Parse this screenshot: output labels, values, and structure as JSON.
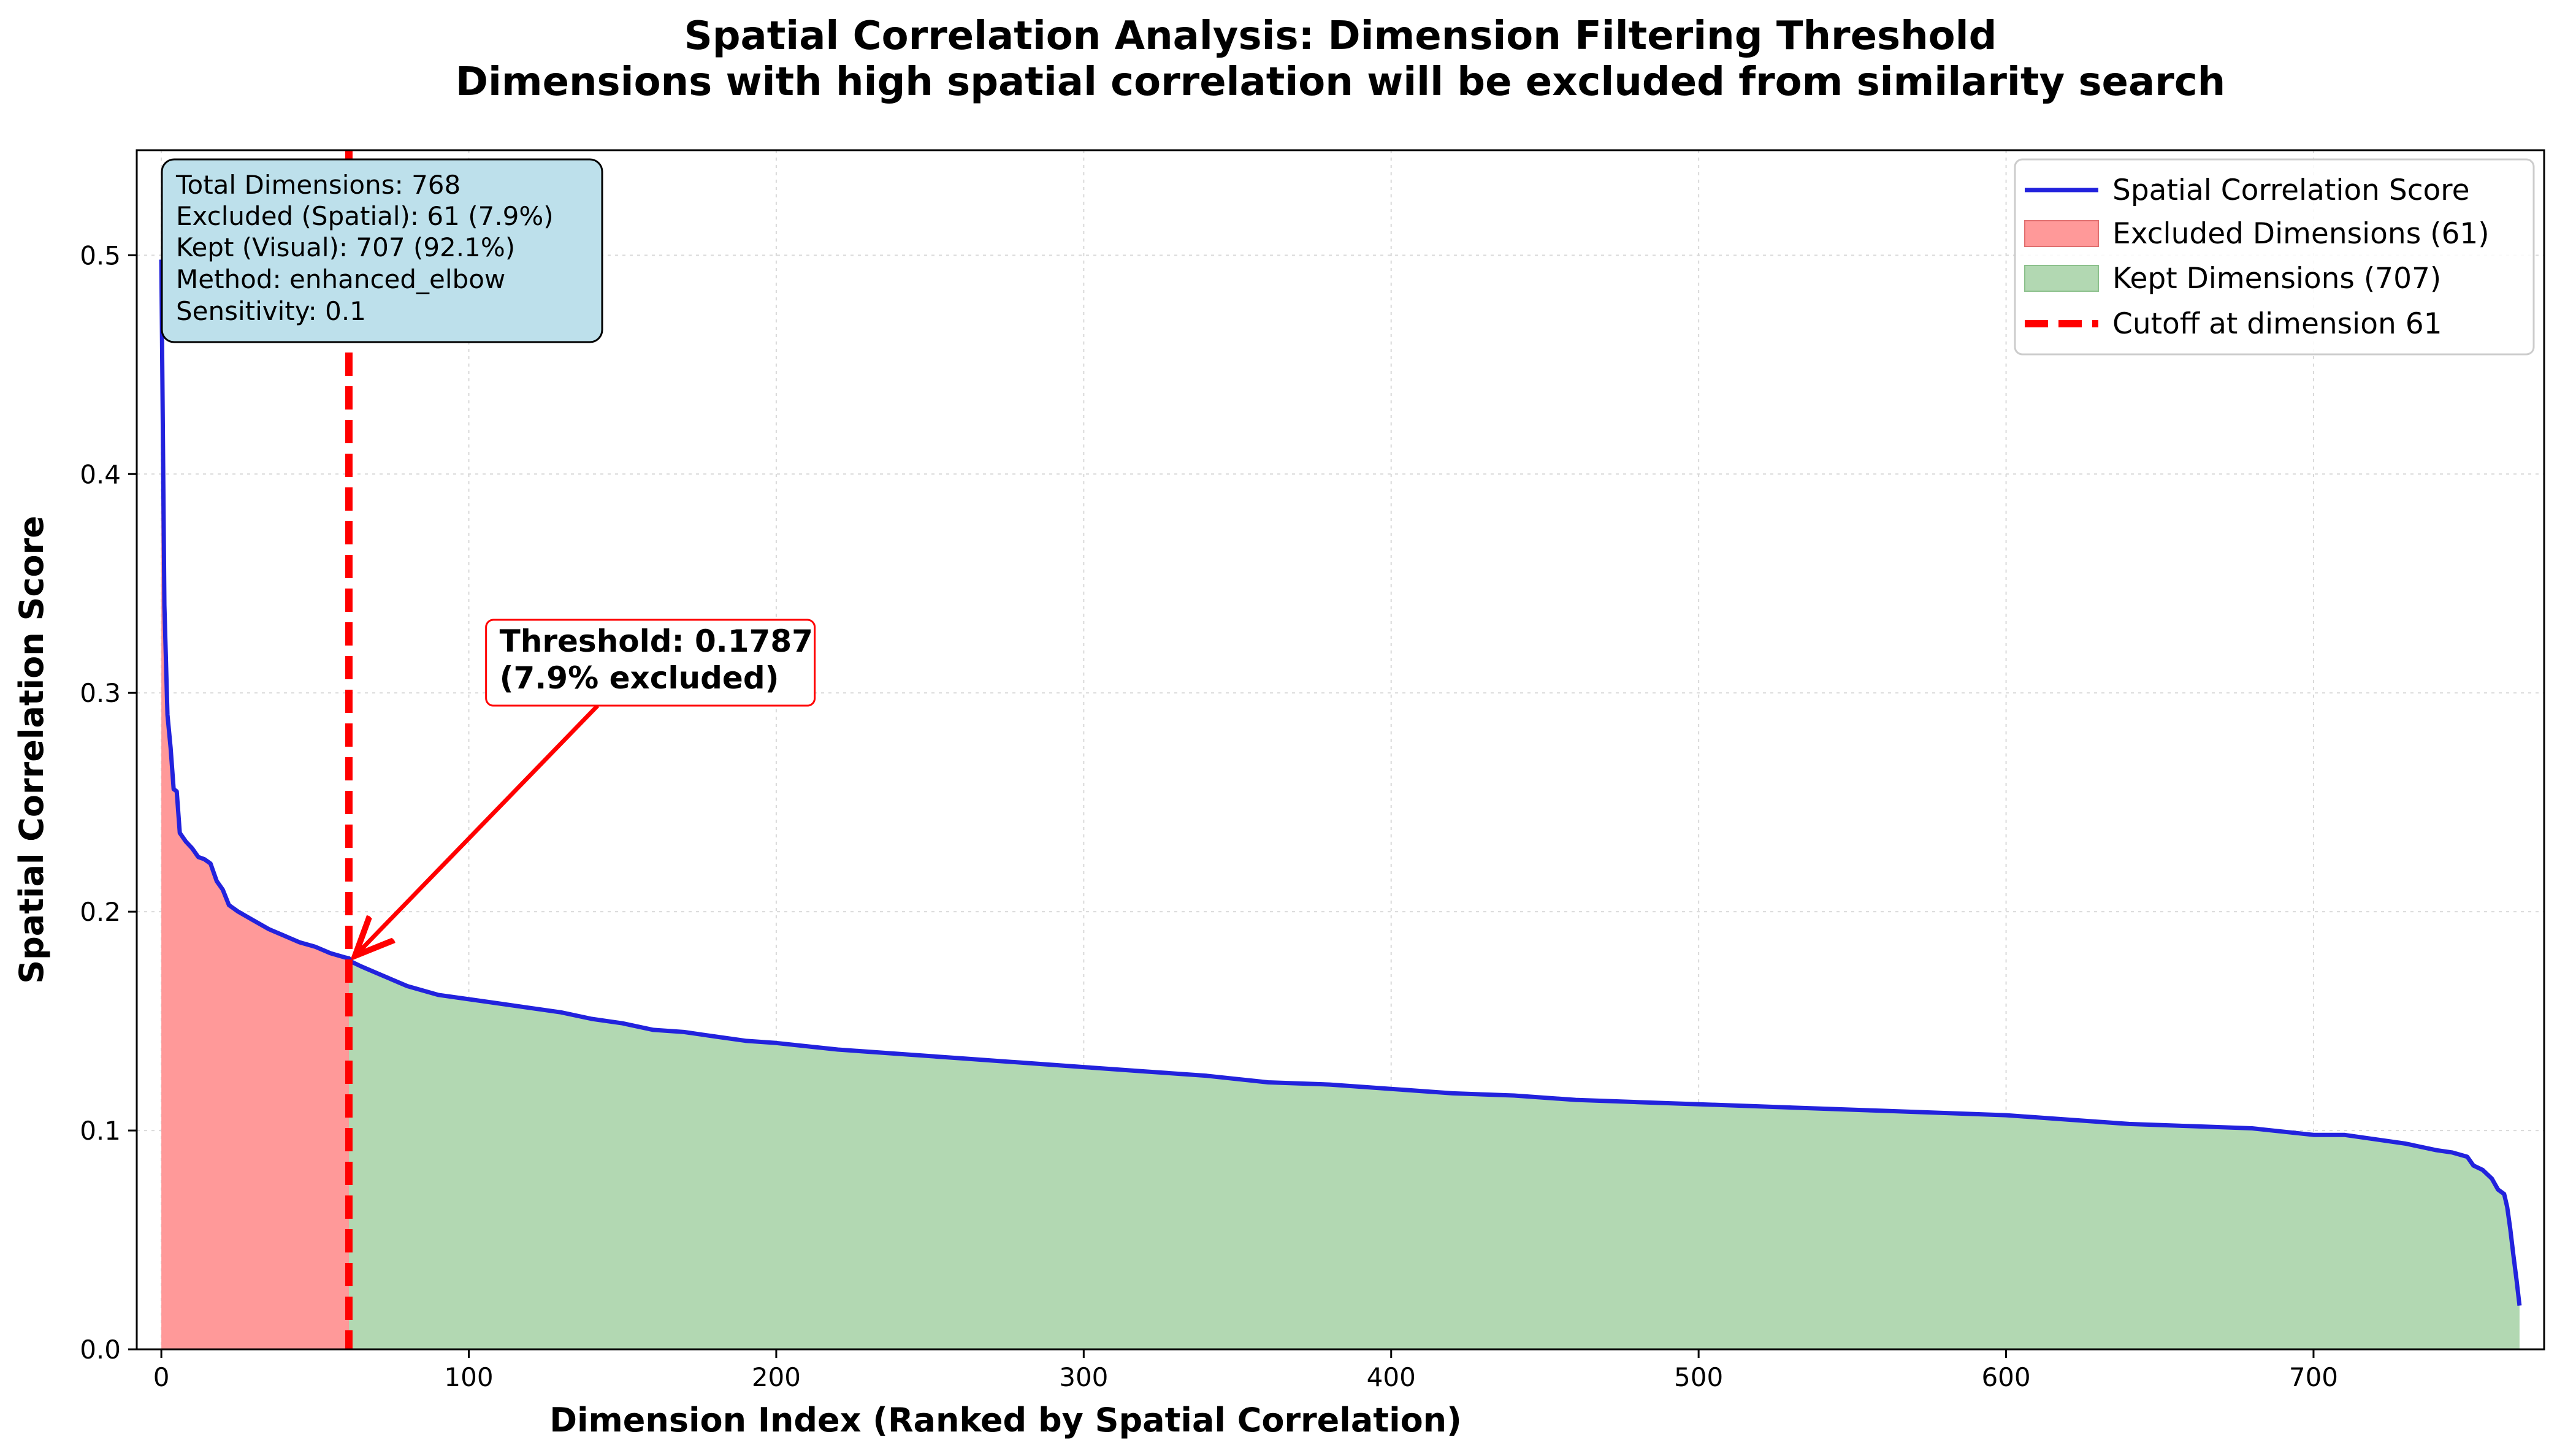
{
  "colors": {
    "line": "#2222dd",
    "excluded_fill": "#ff9999",
    "kept_fill": "#b2d8b2",
    "cutoff": "#ff0000",
    "info_box_bg": "#bde0eb",
    "annotation_border": "#ff0000"
  },
  "chart_data": {
    "type": "area",
    "title": "Spatial Correlation Analysis: Dimension Filtering Threshold",
    "subtitle": "Dimensions with high spatial correlation will be excluded from similarity search",
    "xlabel": "Dimension Index (Ranked by Spatial Correlation)",
    "ylabel": "Spatial Correlation Score",
    "xlim": [
      -8,
      775
    ],
    "ylim": [
      0,
      0.548
    ],
    "xticks": [
      0,
      100,
      200,
      300,
      400,
      500,
      600,
      700
    ],
    "yticks": [
      "0.0",
      "0.1",
      "0.2",
      "0.3",
      "0.4",
      "0.5"
    ],
    "grid": true,
    "legend_position": "top-right",
    "series": [
      {
        "name": "Spatial Correlation Score",
        "kind": "line",
        "x": [
          0,
          1,
          2,
          3,
          4,
          5,
          6,
          8,
          10,
          12,
          14,
          16,
          18,
          20,
          22,
          25,
          30,
          35,
          40,
          45,
          50,
          55,
          60,
          61,
          62,
          65,
          70,
          80,
          90,
          100,
          110,
          120,
          130,
          140,
          150,
          160,
          170,
          180,
          190,
          200,
          220,
          240,
          260,
          280,
          300,
          320,
          340,
          360,
          380,
          400,
          420,
          440,
          460,
          480,
          500,
          520,
          540,
          560,
          580,
          600,
          620,
          640,
          660,
          680,
          700,
          710,
          720,
          730,
          740,
          745,
          750,
          752,
          755,
          758,
          760,
          762,
          763,
          764,
          765,
          766,
          767
        ],
        "y": [
          0.498,
          0.34,
          0.29,
          0.275,
          0.256,
          0.255,
          0.236,
          0.232,
          0.229,
          0.225,
          0.224,
          0.222,
          0.214,
          0.21,
          0.203,
          0.2,
          0.196,
          0.192,
          0.189,
          0.186,
          0.184,
          0.181,
          0.179,
          0.1787,
          0.177,
          0.175,
          0.172,
          0.166,
          0.162,
          0.16,
          0.158,
          0.156,
          0.154,
          0.151,
          0.149,
          0.146,
          0.145,
          0.143,
          0.141,
          0.14,
          0.137,
          0.135,
          0.133,
          0.131,
          0.129,
          0.127,
          0.125,
          0.122,
          0.121,
          0.119,
          0.117,
          0.116,
          0.114,
          0.113,
          0.112,
          0.111,
          0.11,
          0.109,
          0.108,
          0.107,
          0.105,
          0.103,
          0.102,
          0.101,
          0.098,
          0.098,
          0.096,
          0.094,
          0.091,
          0.09,
          0.088,
          0.084,
          0.082,
          0.078,
          0.073,
          0.071,
          0.065,
          0.055,
          0.043,
          0.032,
          0.02
        ]
      },
      {
        "name": "Excluded Dimensions (61)",
        "kind": "fill",
        "range": [
          0,
          61
        ]
      },
      {
        "name": "Kept Dimensions (707)",
        "kind": "fill",
        "range": [
          61,
          767
        ]
      },
      {
        "name": "Cutoff at dimension 61",
        "kind": "vline",
        "x": 61
      }
    ],
    "info_box": [
      "Total Dimensions: 768",
      "Excluded (Spatial): 61 (7.9%)",
      "Kept (Visual): 707 (92.1%)",
      "Method: enhanced_elbow",
      "Sensitivity: 0.1"
    ],
    "annotation": {
      "lines": [
        "Threshold: 0.1787",
        "(7.9% excluded)"
      ],
      "point": {
        "x": 61,
        "y": 0.1787
      },
      "text_at": {
        "x": 110,
        "y": 0.302
      }
    }
  }
}
